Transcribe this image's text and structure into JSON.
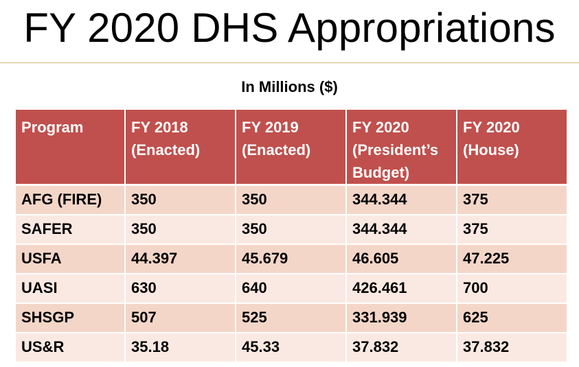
{
  "title": "FY 2020 DHS Appropriations",
  "subtitle": "In Millions ($)",
  "table": {
    "headers": [
      [
        "Program"
      ],
      [
        "FY 2018",
        "(Enacted)"
      ],
      [
        "FY 2019",
        "(Enacted)"
      ],
      [
        "FY 2020",
        "(President’s",
        "Budget)"
      ],
      [
        "FY 2020",
        "(House)"
      ]
    ],
    "rows": [
      [
        "AFG (FIRE)",
        "350",
        "350",
        "344.344",
        "375"
      ],
      [
        "SAFER",
        "350",
        "350",
        "344.344",
        "375"
      ],
      [
        "USFA",
        "44.397",
        "45.679",
        "46.605",
        "47.225"
      ],
      [
        "UASI",
        "630",
        "640",
        "426.461",
        "700"
      ],
      [
        "SHSGP",
        "507",
        "525",
        "331.939",
        "625"
      ],
      [
        "US&R",
        "35.18",
        "45.33",
        "37.832",
        "37.832"
      ]
    ]
  },
  "colors": {
    "header_bg": "#c0504d",
    "header_text": "#ffffff",
    "row_band_1": "#f4d6c8",
    "row_band_2": "#fae9e2",
    "title_rule": "#d6b97a"
  }
}
